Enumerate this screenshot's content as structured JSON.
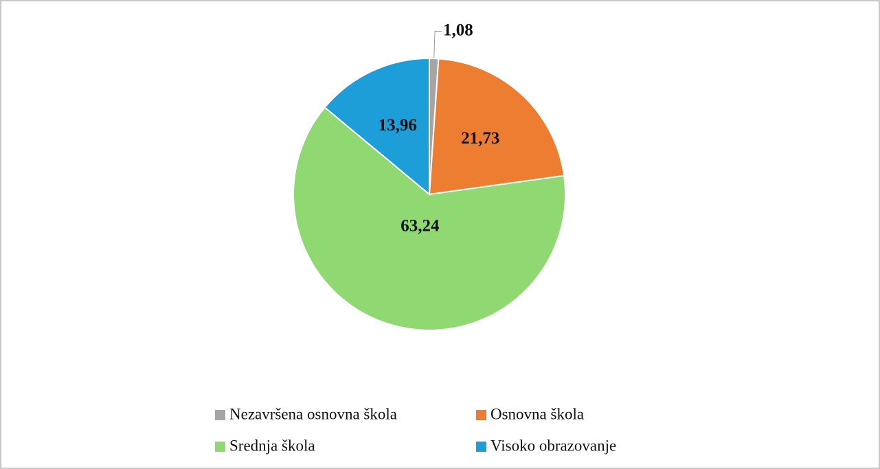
{
  "chart_data": {
    "type": "pie",
    "categories": [
      "Nezavršena osnovna škola",
      "Osnovna škola",
      "Srednja škola",
      "Visoko obrazovanje"
    ],
    "values": [
      1.08,
      21.73,
      63.24,
      13.96
    ],
    "value_labels": [
      "1,08",
      "21,73",
      "63,24",
      "13,96"
    ],
    "colors": [
      "#a5a5a5",
      "#ed7d31",
      "#8fd872",
      "#1e9ed8"
    ],
    "legend": "bottom"
  }
}
